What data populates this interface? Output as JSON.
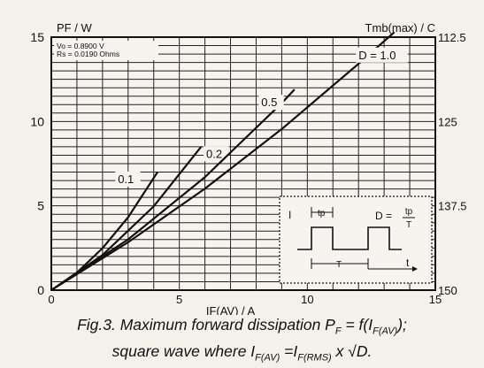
{
  "chart_data": {
    "type": "line",
    "ylabel": "PF / W",
    "xlabel": "IF(AV) / A",
    "right_ylabel": "Tmb(max) / C",
    "params": [
      "Vo = 0.8900 V",
      "Rs = 0.0190 Ohms"
    ],
    "xlim": [
      0,
      15
    ],
    "ylim": [
      0,
      15
    ],
    "x_ticks": [
      "0",
      "5",
      "10",
      "15"
    ],
    "y_ticks": [
      "0",
      "5",
      "10",
      "15"
    ],
    "right_ticks": [
      {
        "label": "112.5",
        "pf": 15
      },
      {
        "label": "125",
        "pf": 10
      },
      {
        "label": "137.5",
        "pf": 5
      },
      {
        "label": "150",
        "pf": 0
      }
    ],
    "grid": true,
    "series": [
      {
        "name": "0.1",
        "x": [
          0,
          1,
          2,
          3,
          4.15
        ],
        "y": [
          0,
          1.04,
          2.49,
          4.32,
          7.0
        ]
      },
      {
        "name": "0.2",
        "x": [
          0,
          2,
          4,
          5.85
        ],
        "y": [
          0,
          2.08,
          4.97,
          8.5
        ]
      },
      {
        "name": "0.5",
        "x": [
          0,
          3,
          6,
          9,
          9.5
        ],
        "y": [
          0,
          3.01,
          6.7,
          11.09,
          11.9
        ]
      },
      {
        "name": "D = 1.0",
        "x": [
          0,
          3,
          6,
          9,
          12,
          13.4
        ],
        "y": [
          0,
          2.84,
          6.02,
          9.55,
          13.42,
          15.3
        ]
      }
    ],
    "inset": {
      "labels": [
        "I",
        "tp",
        "D =",
        "tp",
        "T",
        "T",
        "t"
      ]
    }
  },
  "caption": {
    "line1": {
      "prefix": "Fig.3.   Maximum forward dissipation P",
      "sub1": "F",
      "mid": " = f(I",
      "sub2": "F(AV)",
      "end": ");"
    },
    "line2": {
      "prefix": "square wave where I",
      "sub1": "F(AV)",
      "mid": " =I",
      "sub2": "F(RMS)",
      "end": " x √D."
    }
  }
}
